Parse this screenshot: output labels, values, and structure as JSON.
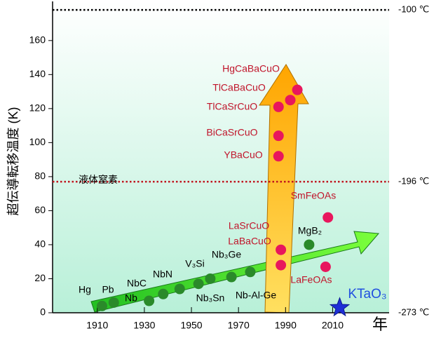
{
  "chart_data": {
    "type": "scatter",
    "y_label": "超伝導転移温度 (K)",
    "x_label": "年",
    "xlim": [
      1891,
      2034
    ],
    "ylim": [
      0,
      183
    ],
    "xticks": [
      1910,
      1930,
      1950,
      1970,
      1990,
      2010
    ],
    "yticks": [
      0,
      20,
      40,
      60,
      80,
      100,
      120,
      140,
      160
    ],
    "reference_lines": [
      {
        "value": 178,
        "label": "-100 ℃"
      },
      {
        "value": 77,
        "label": "-196 ℃",
        "annotation": "液体窒素"
      },
      {
        "value": 0,
        "label": "-273 ℃"
      }
    ],
    "series": [
      {
        "color": "#2a8a2a",
        "label_color": "#000000",
        "marker": "circle",
        "labels": [
          "Hg",
          "Pb",
          "Nb",
          "NbC",
          "NbN",
          "V₃Si",
          "Nb₃Sn",
          "Nb-Al-Ge",
          "Nb₃Ge",
          "MgB₂"
        ],
        "x": [
          1912,
          1917,
          1932,
          1938,
          1945,
          1953,
          1958,
          1967,
          1975,
          2000
        ],
        "values": [
          4,
          6,
          7,
          11,
          14,
          17,
          20,
          21,
          24,
          40
        ]
      },
      {
        "color": "#e8175d",
        "label_color": "#c0142a",
        "marker": "circle",
        "labels": [
          "LaBaCuO",
          "LaSrCuO",
          "YBaCuO",
          "BiCaSrCuO",
          "TlCaSrCuO",
          "TlCaBaCuO",
          "HgCaBaCuO",
          "SmFeOAs",
          "LaFeOAs"
        ],
        "x": [
          1988,
          1988,
          1987,
          1987,
          1987,
          1992,
          1995,
          2008,
          2007
        ],
        "values": [
          28,
          37,
          92,
          104,
          121,
          125,
          131,
          56,
          27
        ]
      },
      {
        "color": "#1f2fd6",
        "label_color": "#1f4fe0",
        "marker": "star",
        "labels": [
          "KTaO₃"
        ],
        "x": [
          2013
        ],
        "values": [
          3
        ]
      }
    ]
  }
}
